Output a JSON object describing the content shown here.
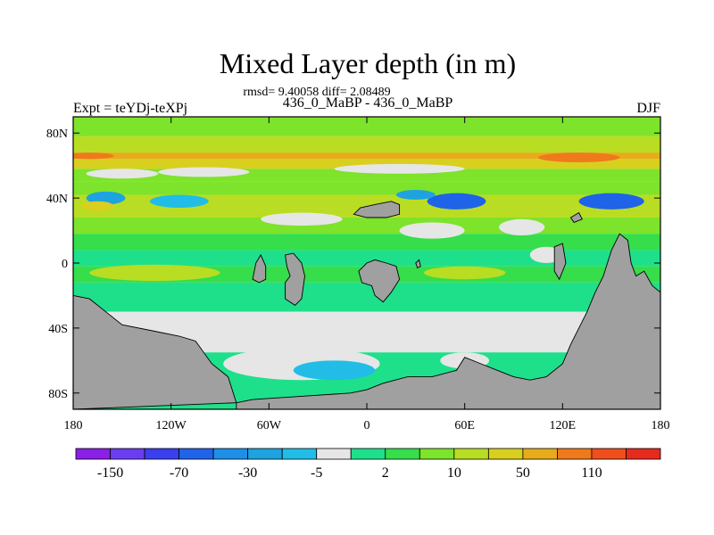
{
  "chart_data": {
    "type": "heatmap",
    "title": "Mixed Layer depth (in m)",
    "subtitle": "rmsd= 9.40058 diff= 2.08489",
    "experiment_label": "Expt = teYDj-teXPj",
    "comparison_label": "436_0_MaBP - 436_0_MaBP",
    "season_label": "DJF",
    "xlim": [
      -180,
      180
    ],
    "ylim": [
      -90,
      90
    ],
    "x_ticks": [
      {
        "value": -180,
        "label": "180"
      },
      {
        "value": -120,
        "label": "120W"
      },
      {
        "value": -60,
        "label": "60W"
      },
      {
        "value": 0,
        "label": "0"
      },
      {
        "value": 60,
        "label": "60E"
      },
      {
        "value": 120,
        "label": "120E"
      },
      {
        "value": 180,
        "label": "180"
      }
    ],
    "y_ticks": [
      {
        "value": 80,
        "label": "80N"
      },
      {
        "value": 40,
        "label": "40N"
      },
      {
        "value": 0,
        "label": "0"
      },
      {
        "value": -40,
        "label": "40S"
      },
      {
        "value": -80,
        "label": "80S"
      }
    ],
    "levels": [
      -150,
      -110,
      -70,
      -50,
      -30,
      -10,
      -5,
      -2,
      2,
      5,
      10,
      30,
      50,
      70,
      110,
      150
    ],
    "colorbar_labels": [
      "-150",
      "-70",
      "-30",
      "-5",
      "2",
      "10",
      "50",
      "110"
    ],
    "colorbar_label_after_box": [
      1,
      3,
      5,
      7,
      9,
      11,
      13,
      15
    ],
    "colors": [
      "#8a1fe6",
      "#6a3df0",
      "#3a3ff0",
      "#1f63e8",
      "#1e8fe6",
      "#1fa2e0",
      "#22bde6",
      "#e6e6e6",
      "#1fe08a",
      "#35de4a",
      "#7de32b",
      "#b9dd22",
      "#d9cf1f",
      "#e6ac1a",
      "#ef7a1c",
      "#f04e1d",
      "#e62a1d"
    ],
    "land_color": "#a0a0a0",
    "bands": [
      {
        "lat": [
          78,
          90
        ],
        "value": 8
      },
      {
        "lat": [
          68,
          78
        ],
        "value": 22
      },
      {
        "lat": [
          64,
          68
        ],
        "value": 60
      },
      {
        "lat": [
          58,
          64
        ],
        "value": 35
      },
      {
        "lat": [
          50,
          58
        ],
        "value": 6
      },
      {
        "lat": [
          42,
          50
        ],
        "value": 8
      },
      {
        "lat": [
          34,
          42
        ],
        "value": 12
      },
      {
        "lat": [
          28,
          34
        ],
        "value": 25
      },
      {
        "lat": [
          18,
          28
        ],
        "value": 6
      },
      {
        "lat": [
          8,
          18
        ],
        "value": 4
      },
      {
        "lat": [
          -2,
          8
        ],
        "value": 1
      },
      {
        "lat": [
          -12,
          -2
        ],
        "value": 3
      },
      {
        "lat": [
          -30,
          -12
        ],
        "value": 0
      },
      {
        "lat": [
          -55,
          -30
        ],
        "value": -3
      },
      {
        "lat": [
          -90,
          -55
        ],
        "value": 0
      }
    ],
    "blobs": [
      {
        "lon": -150,
        "lat": 55,
        "rx": 22,
        "ry": 3,
        "value": -3
      },
      {
        "lon": -100,
        "lat": 56,
        "rx": 28,
        "ry": 3,
        "value": -5
      },
      {
        "lon": 20,
        "lat": 58,
        "rx": 40,
        "ry": 3,
        "value": -4
      },
      {
        "lon": 130,
        "lat": 65,
        "rx": 25,
        "ry": 3,
        "value": 70
      },
      {
        "lon": -170,
        "lat": 66,
        "rx": 15,
        "ry": 2,
        "value": 70
      },
      {
        "lon": -160,
        "lat": 40,
        "rx": 12,
        "ry": 4,
        "value": -20
      },
      {
        "lon": -115,
        "lat": 38,
        "rx": 18,
        "ry": 4,
        "value": -8
      },
      {
        "lon": 55,
        "lat": 38,
        "rx": 18,
        "ry": 5,
        "value": -60
      },
      {
        "lon": 30,
        "lat": 42,
        "rx": 12,
        "ry": 3,
        "value": -20
      },
      {
        "lon": 150,
        "lat": 38,
        "rx": 20,
        "ry": 5,
        "value": -60
      },
      {
        "lon": -165,
        "lat": 35,
        "rx": 10,
        "ry": 3,
        "value": 40
      },
      {
        "lon": -40,
        "lat": 27,
        "rx": 25,
        "ry": 4,
        "value": -4
      },
      {
        "lon": 40,
        "lat": 20,
        "rx": 20,
        "ry": 5,
        "value": -3
      },
      {
        "lon": 95,
        "lat": 22,
        "rx": 14,
        "ry": 5,
        "value": -3
      },
      {
        "lon": 110,
        "lat": 5,
        "rx": 10,
        "ry": 5,
        "value": -3
      },
      {
        "lon": -130,
        "lat": -6,
        "rx": 40,
        "ry": 5,
        "value": 12
      },
      {
        "lon": 60,
        "lat": -6,
        "rx": 25,
        "ry": 4,
        "value": 14
      },
      {
        "lon": -40,
        "lat": -62,
        "rx": 48,
        "ry": 10,
        "value": -3
      },
      {
        "lon": -20,
        "lat": -66,
        "rx": 25,
        "ry": 6,
        "value": -6
      },
      {
        "lon": 60,
        "lat": -60,
        "rx": 15,
        "ry": 5,
        "value": -3
      }
    ],
    "land": [
      [
        [
          -180,
          -20
        ],
        [
          -170,
          -22
        ],
        [
          -160,
          -30
        ],
        [
          -150,
          -38
        ],
        [
          -130,
          -42
        ],
        [
          -115,
          -45
        ],
        [
          -105,
          -48
        ],
        [
          -95,
          -62
        ],
        [
          -85,
          -70
        ],
        [
          -80,
          -86
        ],
        [
          -180,
          -90
        ]
      ],
      [
        [
          -80,
          -86
        ],
        [
          -70,
          -84
        ],
        [
          -40,
          -82
        ],
        [
          -10,
          -80
        ],
        [
          0,
          -78
        ],
        [
          10,
          -74
        ],
        [
          25,
          -70
        ],
        [
          40,
          -70
        ],
        [
          55,
          -66
        ],
        [
          60,
          -58
        ],
        [
          70,
          -62
        ],
        [
          80,
          -66
        ],
        [
          90,
          -70
        ],
        [
          100,
          -72
        ],
        [
          110,
          -70
        ],
        [
          120,
          -62
        ],
        [
          125,
          -50
        ],
        [
          130,
          -40
        ],
        [
          135,
          -30
        ],
        [
          140,
          -18
        ],
        [
          145,
          -8
        ],
        [
          150,
          8
        ],
        [
          155,
          18
        ],
        [
          160,
          14
        ],
        [
          162,
          0
        ],
        [
          165,
          -8
        ],
        [
          170,
          -5
        ],
        [
          175,
          -14
        ],
        [
          180,
          -18
        ],
        [
          180,
          -90
        ],
        [
          -80,
          -90
        ]
      ],
      [
        [
          -70,
          -10
        ],
        [
          -68,
          0
        ],
        [
          -65,
          5
        ],
        [
          -62,
          -2
        ],
        [
          -62,
          -10
        ],
        [
          -66,
          -12
        ]
      ],
      [
        [
          -50,
          5
        ],
        [
          -45,
          6
        ],
        [
          -40,
          0
        ],
        [
          -38,
          -8
        ],
        [
          -40,
          -22
        ],
        [
          -44,
          -26
        ],
        [
          -50,
          -22
        ],
        [
          -50,
          -12
        ],
        [
          -47,
          -8
        ],
        [
          -49,
          -2
        ]
      ],
      [
        [
          -5,
          -5
        ],
        [
          0,
          0
        ],
        [
          5,
          2
        ],
        [
          12,
          0
        ],
        [
          18,
          -2
        ],
        [
          20,
          -10
        ],
        [
          15,
          -18
        ],
        [
          10,
          -24
        ],
        [
          5,
          -20
        ],
        [
          3,
          -14
        ],
        [
          -3,
          -12
        ]
      ],
      [
        [
          -8,
          30
        ],
        [
          -4,
          34
        ],
        [
          5,
          36
        ],
        [
          15,
          38
        ],
        [
          20,
          36
        ],
        [
          20,
          30
        ],
        [
          12,
          28
        ],
        [
          0,
          28
        ]
      ],
      [
        [
          115,
          10
        ],
        [
          120,
          12
        ],
        [
          122,
          0
        ],
        [
          118,
          -10
        ],
        [
          115,
          -5
        ]
      ],
      [
        [
          125,
          28
        ],
        [
          130,
          31
        ],
        [
          132,
          27
        ],
        [
          127,
          25
        ]
      ],
      [
        [
          30,
          0
        ],
        [
          32,
          2
        ],
        [
          33,
          -2
        ],
        [
          31,
          -3
        ]
      ]
    ]
  }
}
